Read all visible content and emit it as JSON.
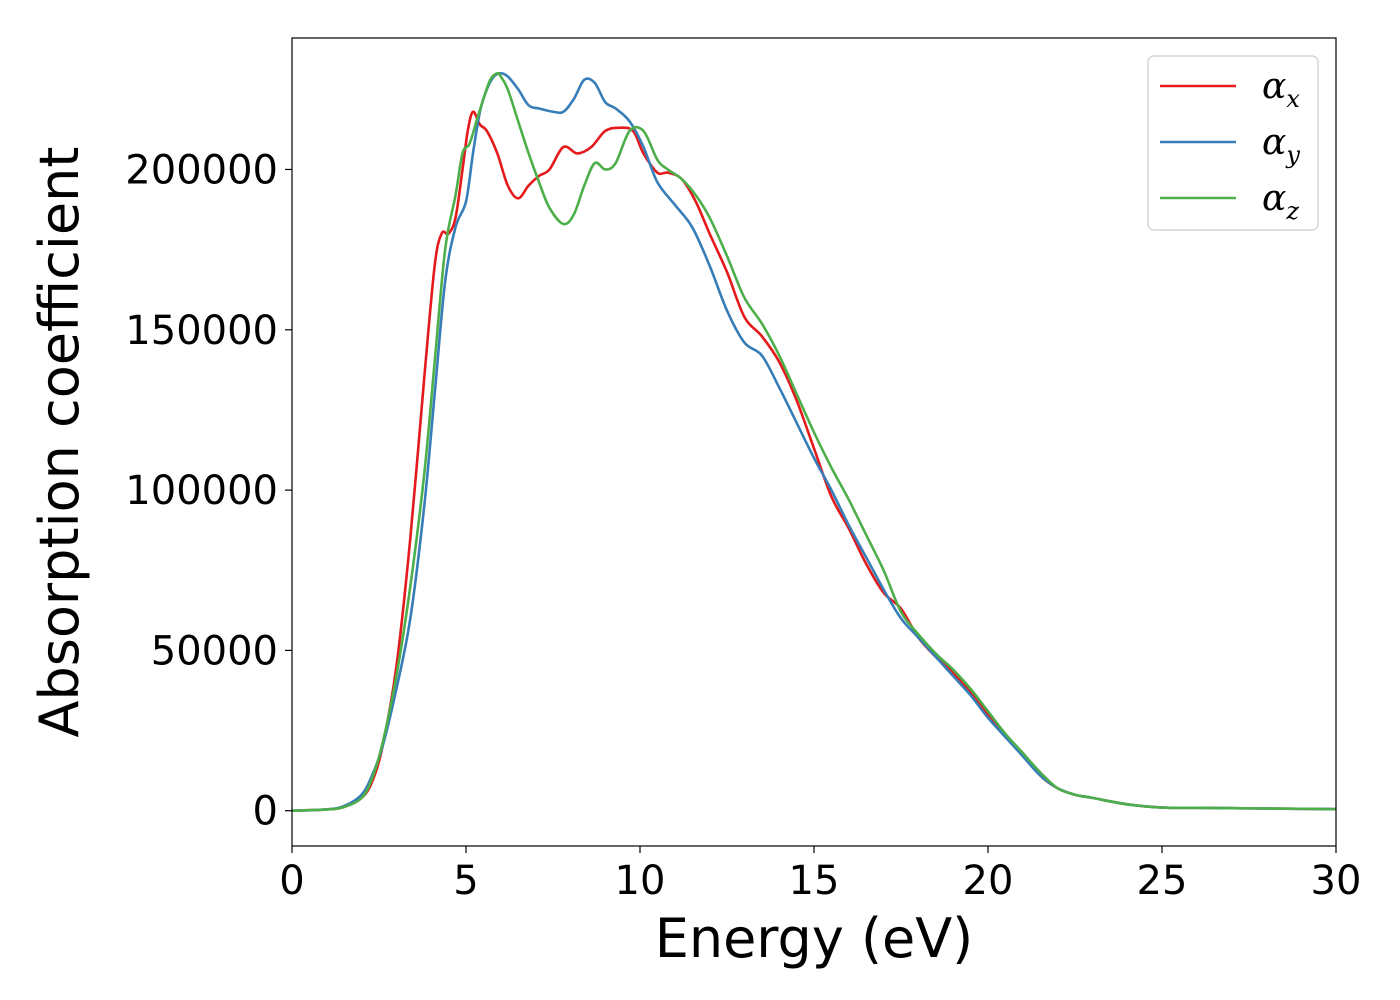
{
  "chart_data": {
    "type": "line",
    "title": "",
    "xlabel": "Energy (eV)",
    "ylabel": "Absorption coefficient",
    "xlim": [
      0,
      30
    ],
    "ylim": [
      -11000,
      241000
    ],
    "xticks": [
      0,
      5,
      10,
      15,
      20,
      25,
      30
    ],
    "xtick_labels": [
      "0",
      "5",
      "10",
      "15",
      "20",
      "25",
      "30"
    ],
    "yticks": [
      0,
      50000,
      100000,
      150000,
      200000
    ],
    "ytick_labels": [
      "0",
      "50000",
      "100000",
      "150000",
      "200000"
    ],
    "grid": false,
    "legend_position": "top-right",
    "series": [
      {
        "name": "αx",
        "symbol": "α",
        "subscript": "x",
        "color": "#e41a1c",
        "x": [
          0,
          1,
          1.5,
          2,
          2.3,
          2.6,
          3,
          3.4,
          3.8,
          4.1,
          4.3,
          4.5,
          4.7,
          4.9,
          5.05,
          5.2,
          5.4,
          5.6,
          5.9,
          6.2,
          6.5,
          6.8,
          7.1,
          7.4,
          7.8,
          8.2,
          8.6,
          9.0,
          9.4,
          9.8,
          10.1,
          10.5,
          10.8,
          11.2,
          11.6,
          12,
          12.5,
          13,
          13.5,
          14,
          14.5,
          15,
          15.5,
          16,
          16.5,
          17,
          17.5,
          18,
          18.5,
          19,
          19.5,
          20,
          20.5,
          21,
          21.5,
          22,
          22.5,
          23,
          24,
          25,
          26,
          27,
          28,
          29,
          30
        ],
        "y": [
          0,
          400,
          1200,
          4000,
          9000,
          20000,
          45000,
          85000,
          135000,
          170000,
          180000,
          180000,
          185000,
          200000,
          212000,
          218000,
          214000,
          212000,
          205000,
          195000,
          191000,
          195000,
          198000,
          200000,
          207000,
          205000,
          207000,
          212000,
          213000,
          212000,
          205000,
          199000,
          199000,
          197000,
          190000,
          180000,
          168000,
          154000,
          148000,
          140000,
          128000,
          113000,
          98000,
          88000,
          77000,
          68000,
          63000,
          54000,
          48000,
          43000,
          37000,
          30000,
          23000,
          18000,
          11000,
          7000,
          5000,
          4000,
          2000,
          1000,
          900,
          800,
          700,
          600,
          500
        ]
      },
      {
        "name": "αy",
        "symbol": "α",
        "subscript": "y",
        "color": "#377eb8",
        "x": [
          0,
          1,
          1.5,
          2,
          2.3,
          2.6,
          3,
          3.4,
          3.8,
          4.1,
          4.4,
          4.7,
          5,
          5.2,
          5.4,
          5.6,
          5.8,
          6.0,
          6.2,
          6.5,
          6.8,
          7.1,
          7.5,
          7.8,
          8.1,
          8.4,
          8.7,
          9.0,
          9.3,
          9.7,
          10.1,
          10.5,
          11,
          11.5,
          12,
          12.5,
          13,
          13.5,
          14,
          14.5,
          15,
          15.5,
          16,
          16.5,
          17,
          17.5,
          18,
          18.5,
          19,
          19.5,
          20,
          20.5,
          21,
          21.5,
          22,
          22.5,
          23,
          24,
          25,
          26,
          27,
          28,
          29,
          30
        ],
        "y": [
          0,
          400,
          1500,
          5000,
          11000,
          20000,
          38000,
          60000,
          95000,
          130000,
          165000,
          182000,
          190000,
          205000,
          218000,
          225000,
          229000,
          230000,
          229000,
          225000,
          220000,
          219000,
          218000,
          218000,
          222000,
          228000,
          227000,
          221000,
          219000,
          215000,
          207000,
          196000,
          189000,
          182000,
          170000,
          156000,
          146000,
          142000,
          132000,
          121000,
          110000,
          100000,
          89000,
          79000,
          69000,
          60000,
          54000,
          48000,
          42000,
          36000,
          29000,
          23000,
          17000,
          11000,
          7000,
          5000,
          4000,
          2000,
          1000,
          900,
          800,
          700,
          600,
          500
        ]
      },
      {
        "name": "αz",
        "symbol": "α",
        "subscript": "z",
        "color": "#4daf4a",
        "x": [
          0,
          1,
          1.5,
          2,
          2.3,
          2.6,
          3,
          3.4,
          3.8,
          4.1,
          4.4,
          4.7,
          4.9,
          5.1,
          5.3,
          5.5,
          5.7,
          5.9,
          6.0,
          6.2,
          6.5,
          6.8,
          7.1,
          7.4,
          7.8,
          8.1,
          8.4,
          8.7,
          9.0,
          9.3,
          9.7,
          10.1,
          10.5,
          10.8,
          11.2,
          11.6,
          12,
          12.5,
          13,
          13.5,
          14,
          14.5,
          15,
          15.5,
          16,
          16.5,
          17,
          17.5,
          18,
          18.5,
          19,
          19.5,
          20,
          20.5,
          21,
          21.5,
          22,
          22.5,
          23,
          24,
          25,
          26,
          27,
          28,
          29,
          30
        ],
        "y": [
          0,
          400,
          1200,
          4000,
          10000,
          21000,
          42000,
          70000,
          105000,
          140000,
          175000,
          192000,
          205000,
          208000,
          215000,
          222000,
          228000,
          230000,
          229000,
          225000,
          215000,
          205000,
          196000,
          188000,
          183000,
          186000,
          195000,
          202000,
          200000,
          202000,
          212000,
          212000,
          203000,
          200000,
          197000,
          192000,
          185000,
          173000,
          160000,
          152000,
          142000,
          130000,
          118000,
          107000,
          97000,
          86000,
          75000,
          62000,
          55000,
          49000,
          44000,
          38000,
          31000,
          24000,
          18000,
          12000,
          7000,
          5000,
          4000,
          2000,
          1000,
          900,
          800,
          700,
          600,
          500
        ]
      }
    ]
  }
}
